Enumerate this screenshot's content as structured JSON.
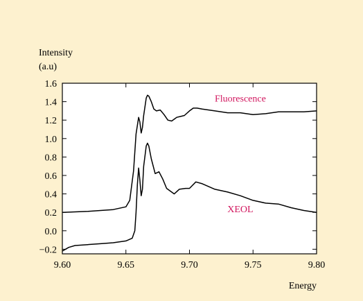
{
  "chart_data": {
    "type": "line",
    "title": "",
    "xlabel": "Energy",
    "ylabel": "Intensity\n(a.u)",
    "xlim": [
      9.6,
      9.8
    ],
    "ylim": [
      -0.25,
      1.6
    ],
    "x_ticks": [
      "9.60",
      "9.65",
      "9.70",
      "9.75",
      "9.80"
    ],
    "y_ticks": [
      "1.6",
      "1.4",
      "1.2",
      "1.0",
      "0.8",
      "0.6",
      "0.4",
      "0.2",
      "0.0",
      "−0.2"
    ],
    "grid": false,
    "colors": {
      "line": "#000000",
      "annotation": "#d1165e",
      "background": "#fdf1cf",
      "plot_area": "#ffffff"
    },
    "series": [
      {
        "name": "Fluorescence",
        "x": [
          9.6,
          9.62,
          9.63,
          9.64,
          9.65,
          9.653,
          9.656,
          9.658,
          9.66,
          9.661,
          9.662,
          9.663,
          9.664,
          9.666,
          9.667,
          9.668,
          9.67,
          9.672,
          9.674,
          9.677,
          9.68,
          9.683,
          9.686,
          9.69,
          9.693,
          9.696,
          9.7,
          9.703,
          9.706,
          9.71,
          9.72,
          9.73,
          9.74,
          9.75,
          9.76,
          9.77,
          9.78,
          9.79,
          9.8
        ],
        "y": [
          0.2,
          0.21,
          0.22,
          0.23,
          0.26,
          0.33,
          0.65,
          1.05,
          1.23,
          1.18,
          1.06,
          1.12,
          1.25,
          1.44,
          1.47,
          1.46,
          1.4,
          1.32,
          1.3,
          1.31,
          1.26,
          1.2,
          1.19,
          1.23,
          1.24,
          1.25,
          1.3,
          1.33,
          1.33,
          1.32,
          1.3,
          1.28,
          1.28,
          1.26,
          1.27,
          1.29,
          1.29,
          1.29,
          1.3
        ]
      },
      {
        "name": "XEOL",
        "x": [
          9.6,
          9.605,
          9.61,
          9.62,
          9.63,
          9.64,
          9.65,
          9.655,
          9.657,
          9.658,
          9.659,
          9.66,
          9.661,
          9.662,
          9.663,
          9.664,
          9.666,
          9.667,
          9.668,
          9.67,
          9.673,
          9.676,
          9.679,
          9.682,
          9.685,
          9.688,
          9.692,
          9.697,
          9.7,
          9.705,
          9.71,
          9.72,
          9.73,
          9.74,
          9.75,
          9.76,
          9.77,
          9.78,
          9.79,
          9.8
        ],
        "y": [
          -0.22,
          -0.18,
          -0.16,
          -0.15,
          -0.14,
          -0.13,
          -0.11,
          -0.08,
          0.0,
          0.2,
          0.5,
          0.68,
          0.55,
          0.38,
          0.45,
          0.7,
          0.92,
          0.95,
          0.92,
          0.78,
          0.62,
          0.64,
          0.56,
          0.46,
          0.43,
          0.4,
          0.45,
          0.46,
          0.46,
          0.53,
          0.51,
          0.45,
          0.42,
          0.38,
          0.33,
          0.3,
          0.29,
          0.25,
          0.22,
          0.2
        ]
      }
    ],
    "annotations": [
      {
        "text": "Fluorescence",
        "x": 9.74,
        "y": 1.4
      },
      {
        "text": "XEOL",
        "x": 9.74,
        "y": 0.2
      }
    ]
  }
}
